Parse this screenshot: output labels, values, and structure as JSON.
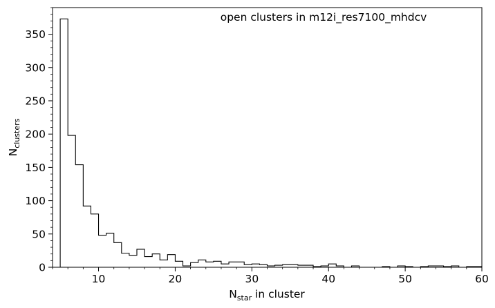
{
  "chart_data": {
    "type": "histogram",
    "title": "open clusters in m12i_res7100_mhdcv",
    "xlabel": {
      "main": "N",
      "sub": "star",
      "rest": " in cluster"
    },
    "ylabel": {
      "main": "N",
      "sub": "clusters"
    },
    "xlim": [
      4,
      60
    ],
    "ylim": [
      0,
      390
    ],
    "x_ticks": [
      10,
      20,
      30,
      40,
      50,
      60
    ],
    "y_ticks": [
      0,
      50,
      100,
      150,
      200,
      250,
      300,
      350
    ],
    "bin_width": 1,
    "bins": [
      {
        "x": 5,
        "count": 373
      },
      {
        "x": 6,
        "count": 198
      },
      {
        "x": 7,
        "count": 154
      },
      {
        "x": 8,
        "count": 92
      },
      {
        "x": 9,
        "count": 80
      },
      {
        "x": 10,
        "count": 48
      },
      {
        "x": 11,
        "count": 51
      },
      {
        "x": 12,
        "count": 37
      },
      {
        "x": 13,
        "count": 21
      },
      {
        "x": 14,
        "count": 18
      },
      {
        "x": 15,
        "count": 27
      },
      {
        "x": 16,
        "count": 16
      },
      {
        "x": 17,
        "count": 20
      },
      {
        "x": 18,
        "count": 11
      },
      {
        "x": 19,
        "count": 19
      },
      {
        "x": 20,
        "count": 9
      },
      {
        "x": 21,
        "count": 2
      },
      {
        "x": 22,
        "count": 7
      },
      {
        "x": 23,
        "count": 11
      },
      {
        "x": 24,
        "count": 8
      },
      {
        "x": 25,
        "count": 9
      },
      {
        "x": 26,
        "count": 5
      },
      {
        "x": 27,
        "count": 8
      },
      {
        "x": 28,
        "count": 8
      },
      {
        "x": 29,
        "count": 4
      },
      {
        "x": 30,
        "count": 5
      },
      {
        "x": 31,
        "count": 4
      },
      {
        "x": 32,
        "count": 2
      },
      {
        "x": 33,
        "count": 3
      },
      {
        "x": 34,
        "count": 4
      },
      {
        "x": 35,
        "count": 4
      },
      {
        "x": 36,
        "count": 3
      },
      {
        "x": 37,
        "count": 3
      },
      {
        "x": 38,
        "count": 1
      },
      {
        "x": 39,
        "count": 2
      },
      {
        "x": 40,
        "count": 5
      },
      {
        "x": 41,
        "count": 2
      },
      {
        "x": 42,
        "count": 0
      },
      {
        "x": 43,
        "count": 2
      },
      {
        "x": 44,
        "count": 0
      },
      {
        "x": 45,
        "count": 0
      },
      {
        "x": 46,
        "count": 0
      },
      {
        "x": 47,
        "count": 1
      },
      {
        "x": 48,
        "count": 0
      },
      {
        "x": 49,
        "count": 2
      },
      {
        "x": 50,
        "count": 1
      },
      {
        "x": 51,
        "count": 0
      },
      {
        "x": 52,
        "count": 1
      },
      {
        "x": 53,
        "count": 2
      },
      {
        "x": 54,
        "count": 2
      },
      {
        "x": 55,
        "count": 1
      },
      {
        "x": 56,
        "count": 2
      },
      {
        "x": 57,
        "count": 0
      },
      {
        "x": 58,
        "count": 1
      },
      {
        "x": 59,
        "count": 1
      }
    ],
    "line_color": "#000000",
    "grid": false,
    "legend": "none"
  }
}
